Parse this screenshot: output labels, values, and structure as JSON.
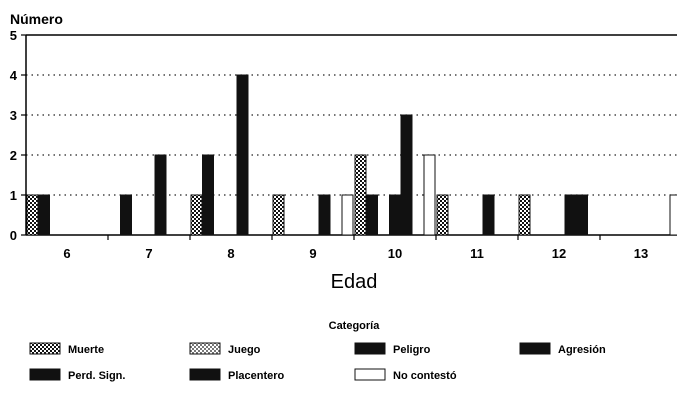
{
  "chart_data": {
    "type": "bar",
    "ylabel": "Número",
    "xlabel": "Edad",
    "ylim": [
      0,
      5
    ],
    "yticks": [
      0,
      1,
      2,
      3,
      4,
      5
    ],
    "grid": true,
    "legend_title": "Categoría",
    "legend_position": "bottom",
    "categories": [
      "6",
      "7",
      "8",
      "9",
      "10",
      "11",
      "12",
      "13"
    ],
    "series": [
      {
        "name": "Muerte",
        "values": [
          1,
          0,
          1,
          1,
          2,
          1,
          1,
          0
        ]
      },
      {
        "name": "Perd. Sign.",
        "values": [
          1,
          1,
          2,
          0,
          1,
          0,
          0,
          0
        ]
      },
      {
        "name": "Juego",
        "values": [
          0,
          0,
          0,
          0,
          0,
          0,
          0,
          0
        ]
      },
      {
        "name": "Placentero",
        "values": [
          0,
          0,
          0,
          0,
          1,
          0,
          0,
          0
        ]
      },
      {
        "name": "Peligro",
        "values": [
          0,
          2,
          4,
          1,
          3,
          1,
          1,
          0
        ]
      },
      {
        "name": "Agresión",
        "values": [
          0,
          0,
          0,
          0,
          0,
          0,
          1,
          0
        ]
      },
      {
        "name": "No contestó",
        "values": [
          0,
          0,
          0,
          1,
          2,
          0,
          0,
          1
        ]
      }
    ]
  },
  "styles": {
    "Muerte": "checker",
    "Perd. Sign.": "solid",
    "Juego": "light-checker",
    "Placentero": "solid",
    "Peligro": "solid",
    "Agresión": "solid",
    "No contestó": "hollow"
  },
  "colors": {
    "bar": "#111111",
    "grid": "#222222",
    "axis": "#000000"
  }
}
